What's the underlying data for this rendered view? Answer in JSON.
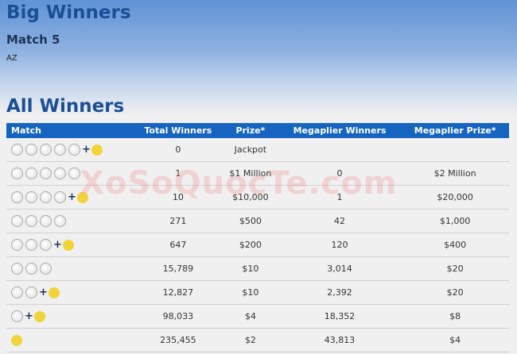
{
  "header": {
    "title": "Big Winners",
    "subtitle": "Match 5",
    "state": "AZ"
  },
  "section_title": "All Winners",
  "watermark": "XoSoQuocTe.com",
  "table": {
    "columns": [
      "Match",
      "Total Winners",
      "Prize*",
      "Megaplier Winners",
      "Megaplier Prize*"
    ],
    "rows": [
      {
        "balls": 5,
        "megaball": true,
        "total": "0",
        "prize": "Jackpot",
        "mp_winners": "",
        "mp_prize": ""
      },
      {
        "balls": 5,
        "megaball": false,
        "total": "1",
        "prize": "$1 Million",
        "mp_winners": "0",
        "mp_prize": "$2 Million"
      },
      {
        "balls": 4,
        "megaball": true,
        "total": "10",
        "prize": "$10,000",
        "mp_winners": "1",
        "mp_prize": "$20,000"
      },
      {
        "balls": 4,
        "megaball": false,
        "total": "271",
        "prize": "$500",
        "mp_winners": "42",
        "mp_prize": "$1,000"
      },
      {
        "balls": 3,
        "megaball": true,
        "total": "647",
        "prize": "$200",
        "mp_winners": "120",
        "mp_prize": "$400"
      },
      {
        "balls": 3,
        "megaball": false,
        "total": "15,789",
        "prize": "$10",
        "mp_winners": "3,014",
        "mp_prize": "$20"
      },
      {
        "balls": 2,
        "megaball": true,
        "total": "12,827",
        "prize": "$10",
        "mp_winners": "2,392",
        "mp_prize": "$20"
      },
      {
        "balls": 1,
        "megaball": true,
        "total": "98,033",
        "prize": "$4",
        "mp_winners": "18,352",
        "mp_prize": "$8"
      },
      {
        "balls": 0,
        "megaball": true,
        "total": "235,455",
        "prize": "$2",
        "mp_winners": "43,813",
        "mp_prize": "$4"
      }
    ]
  },
  "colors": {
    "header_bg": "#1565c0",
    "title": "#1a4f96",
    "megaball": "#f0d43a"
  }
}
